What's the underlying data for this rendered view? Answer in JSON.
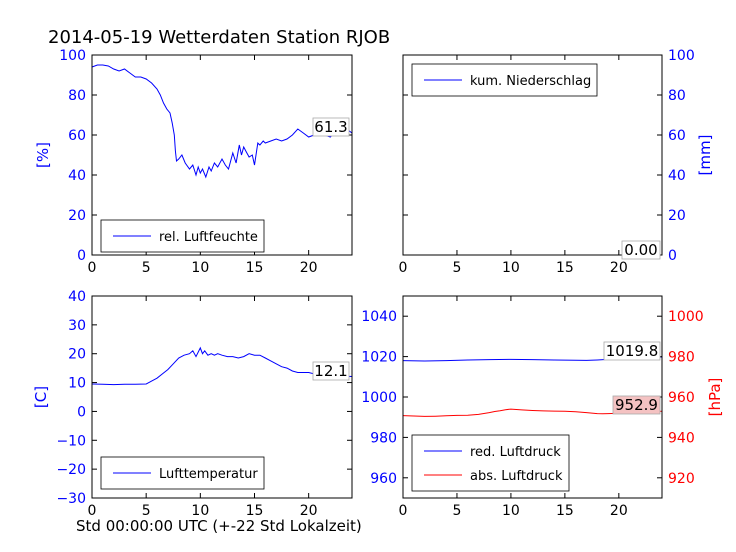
{
  "title": "2014-05-19 Wetterdaten Station RJOB",
  "footer": "Std 00:00:00 UTC (+-22 Std Lokalzeit)",
  "colors": {
    "blue": "#0000ff",
    "red": "#ff0000",
    "black": "#000000",
    "pink_box": "#f4c2c2"
  },
  "chart_data": [
    {
      "type": "line",
      "panel": "top-left",
      "ylabel": "[%]",
      "xlim": [
        0,
        24
      ],
      "ylim": [
        0,
        100
      ],
      "xticks": [
        "0",
        "5",
        "10",
        "15",
        "20"
      ],
      "yticks": [
        "0",
        "20",
        "40",
        "60",
        "80",
        "100"
      ],
      "legend_position": "lower-left",
      "annotation": "61.3",
      "series": [
        {
          "name": "rel. Luftfeuchte",
          "color": "#0000ff",
          "x": [
            0,
            0.5,
            1,
            1.5,
            2,
            2.5,
            3,
            3.5,
            4,
            4.5,
            5,
            5.5,
            6,
            6.3,
            6.6,
            6.9,
            7.2,
            7.4,
            7.6,
            7.7,
            7.8,
            8,
            8.3,
            8.6,
            9,
            9.3,
            9.6,
            9.8,
            10,
            10.2,
            10.5,
            10.8,
            11,
            11.3,
            11.6,
            12,
            12.3,
            12.6,
            13,
            13.3,
            13.6,
            13.8,
            14,
            14.2,
            14.5,
            14.8,
            15,
            15.3,
            15.5,
            15.8,
            16,
            16.5,
            17,
            17.5,
            18,
            18.5,
            19,
            19.5,
            20,
            20.5,
            21,
            21.5,
            22,
            22.5,
            23,
            23.5,
            24
          ],
          "y": [
            94,
            95,
            95,
            94.5,
            93,
            92,
            93,
            91,
            89,
            89,
            88,
            86,
            83,
            80,
            76,
            73,
            71,
            66,
            60,
            52,
            47,
            48,
            50,
            46,
            43,
            45,
            40,
            44,
            41,
            43,
            39,
            44,
            42,
            46,
            44,
            48,
            45,
            43,
            51,
            46,
            55,
            50,
            54,
            52,
            49,
            50,
            45,
            56,
            55,
            57,
            56,
            57,
            58,
            57,
            58,
            60,
            63,
            61,
            59,
            60,
            61,
            60,
            59,
            62,
            61,
            63,
            61
          ]
        }
      ]
    },
    {
      "type": "line",
      "panel": "top-right",
      "ylabel": "[mm]",
      "xlim": [
        0,
        24
      ],
      "ylim": [
        0,
        100
      ],
      "xticks": [
        "0",
        "5",
        "10",
        "15",
        "20"
      ],
      "yticks": [
        "0",
        "20",
        "40",
        "60",
        "80",
        "100"
      ],
      "legend_position": "upper-left",
      "annotation": "0.00",
      "series": [
        {
          "name": "kum. Niederschlag",
          "color": "#0000ff",
          "x": [
            0,
            24
          ],
          "y": [
            0,
            0
          ]
        }
      ]
    },
    {
      "type": "line",
      "panel": "bottom-left",
      "ylabel": "[C]",
      "xlim": [
        0,
        24
      ],
      "ylim": [
        -30,
        40
      ],
      "xticks": [
        "0",
        "5",
        "10",
        "15",
        "20"
      ],
      "yticks": [
        "−30",
        "−20",
        "−10",
        "0",
        "10",
        "20",
        "30",
        "40"
      ],
      "legend_position": "lower-left",
      "annotation": "12.1",
      "series": [
        {
          "name": "Lufttemperatur",
          "color": "#0000ff",
          "x": [
            0,
            1,
            2,
            3,
            4,
            5,
            5.5,
            6,
            6.5,
            7,
            7.5,
            8,
            8.5,
            9,
            9.3,
            9.6,
            10,
            10.2,
            10.4,
            10.7,
            11,
            11.3,
            11.6,
            12,
            12.5,
            13,
            13.5,
            14,
            14.5,
            15,
            15.5,
            16,
            16.5,
            17,
            17.5,
            18,
            18.5,
            19,
            19.5,
            20,
            20.5,
            21,
            21.5,
            22,
            22.5,
            23,
            23.5,
            24
          ],
          "y": [
            9.5,
            9.4,
            9.3,
            9.4,
            9.4,
            9.5,
            10.5,
            11.5,
            13,
            14.5,
            16.5,
            18.5,
            19.5,
            20,
            21,
            19,
            22,
            20,
            21,
            19.5,
            20,
            19.5,
            20,
            19.5,
            19,
            19,
            18.5,
            19,
            20,
            19.5,
            19.5,
            18.5,
            17.5,
            16.5,
            15.5,
            15,
            14,
            13.5,
            13.5,
            13.5,
            13,
            13,
            12.5,
            12.5,
            12.4,
            12.3,
            12.2,
            12.1
          ]
        }
      ]
    },
    {
      "type": "line",
      "panel": "bottom-right",
      "left_axis": {
        "ylim": [
          950,
          1050
        ],
        "yticks": [
          "960",
          "980",
          "1000",
          "1020",
          "1040"
        ],
        "color": "#0000ff"
      },
      "right_axis": {
        "ylabel": "[hPa]",
        "ylim": [
          910,
          1010
        ],
        "yticks": [
          "920",
          "940",
          "960",
          "980",
          "1000"
        ],
        "color": "#ff0000"
      },
      "xlim": [
        0,
        24
      ],
      "xticks": [
        "0",
        "5",
        "10",
        "15",
        "20"
      ],
      "legend_position": "lower-left",
      "annotations": [
        "1019.8",
        "952.9"
      ],
      "series": [
        {
          "name": "red. Luftdruck",
          "color": "#0000ff",
          "axis": "left",
          "x": [
            0,
            2,
            4,
            6,
            8,
            10,
            12,
            14,
            16,
            17,
            18,
            19,
            20,
            21,
            22,
            23,
            24
          ],
          "y": [
            1018.0,
            1017.8,
            1018.0,
            1018.3,
            1018.5,
            1018.6,
            1018.5,
            1018.3,
            1018.2,
            1018.1,
            1018.3,
            1018.6,
            1019.0,
            1019.4,
            1019.6,
            1019.7,
            1019.8
          ]
        },
        {
          "name": "abs. Luftdruck",
          "color": "#ff0000",
          "axis": "right",
          "x": [
            0,
            1,
            2,
            3,
            4,
            5,
            6,
            7,
            8,
            8.5,
            9,
            9.5,
            10,
            10.5,
            11,
            12,
            13,
            14,
            15,
            16,
            17,
            18,
            18.5,
            19,
            20,
            21,
            22,
            23,
            24
          ],
          "y": [
            950.8,
            950.6,
            950.4,
            950.5,
            950.7,
            950.9,
            951.0,
            951.4,
            952.3,
            952.8,
            953.2,
            953.7,
            954.0,
            953.8,
            953.6,
            953.3,
            953.1,
            953.0,
            952.9,
            952.7,
            952.3,
            951.8,
            951.7,
            951.8,
            952.0,
            952.3,
            952.6,
            952.8,
            952.9
          ]
        }
      ]
    }
  ]
}
